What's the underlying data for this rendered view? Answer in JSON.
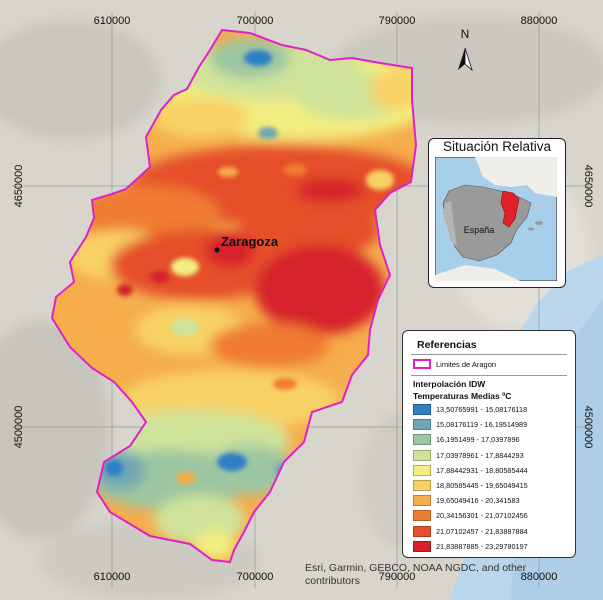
{
  "map": {
    "grid": {
      "top_x": [
        "610000",
        "700000",
        "790000",
        "880000"
      ],
      "bottom_x": [
        "610000",
        "700000",
        "790000",
        "880000"
      ],
      "left_y": [
        "4650000",
        "4500000"
      ],
      "right_y": [
        "4650000",
        "4500000"
      ]
    },
    "north_label": "N",
    "city_label": "Zaragoza",
    "colors": {
      "boundary": "#e020c8",
      "land": "#d9d6ce",
      "sea": "#b8d5ec"
    }
  },
  "inset": {
    "title": "Situación Relativa",
    "country_label": "España"
  },
  "legend": {
    "title": "Referencias",
    "boundary_label": "Limites de Aragon",
    "method": "Interpolación IDW",
    "variable": "Temperaturas Medias ºC",
    "classes": [
      {
        "label": "13,50765991 - 15,08176118",
        "color": "#2f7fc6"
      },
      {
        "label": "15,08176119 - 16,19514989",
        "color": "#6fa5b4"
      },
      {
        "label": "16,1951499 - 17,0397896",
        "color": "#9cc6a2"
      },
      {
        "label": "17,03978961 - 17,8844293",
        "color": "#cfe39a"
      },
      {
        "label": "17,88442931 - 18,80585444",
        "color": "#f2ee80"
      },
      {
        "label": "18,80585445 - 19,65049415",
        "color": "#f8d165"
      },
      {
        "label": "19,65049416 - 20,341583",
        "color": "#f6ad4c"
      },
      {
        "label": "20,34156301 - 21,07102456",
        "color": "#ef7c33"
      },
      {
        "label": "21,07102457 - 21,83887884",
        "color": "#e5502a"
      },
      {
        "label": "21,83887885 - 23,29780197",
        "color": "#d6202a"
      }
    ]
  },
  "attribution": "Esri, Garmin, GEBCO, NOAA NGDC, and other contributors"
}
